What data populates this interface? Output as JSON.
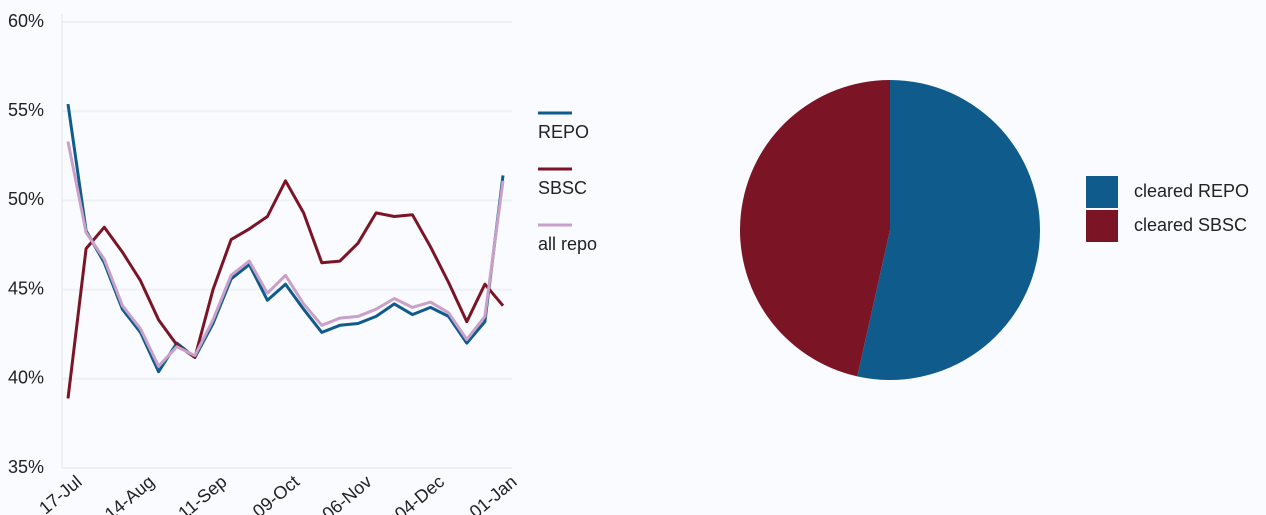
{
  "chart_data": [
    {
      "type": "line",
      "categories": [
        "17-Jul",
        null,
        null,
        null,
        "14-Aug",
        null,
        null,
        null,
        "11-Sep",
        null,
        null,
        null,
        "09-Oct",
        null,
        null,
        null,
        "06-Nov",
        null,
        null,
        null,
        "04-Dec",
        null,
        null,
        null,
        "01-Jan"
      ],
      "series": [
        {
          "name": "REPO",
          "color": "#0f5c8c",
          "values": [
            55.4,
            48.3,
            46.5,
            43.9,
            42.6,
            40.4,
            42.0,
            41.2,
            43.1,
            45.6,
            46.4,
            44.4,
            45.3,
            43.9,
            42.6,
            43.0,
            43.1,
            43.5,
            44.2,
            43.6,
            44.0,
            43.5,
            42.0,
            43.2,
            51.4
          ]
        },
        {
          "name": "SBSC",
          "color": "#7b1526",
          "values": [
            38.9,
            47.3,
            48.5,
            47.1,
            45.5,
            43.3,
            41.9,
            41.2,
            45.0,
            47.8,
            48.4,
            49.1,
            51.1,
            49.3,
            46.5,
            46.6,
            47.6,
            49.3,
            49.1,
            49.2,
            47.4,
            45.4,
            43.2,
            45.3,
            44.1
          ]
        },
        {
          "name": "all repo",
          "color": "#c9a0c8",
          "values": [
            53.3,
            48.2,
            46.7,
            44.1,
            42.8,
            40.7,
            41.8,
            41.3,
            43.3,
            45.8,
            46.6,
            44.8,
            45.8,
            44.2,
            43.0,
            43.4,
            43.5,
            43.9,
            44.5,
            44.0,
            44.3,
            43.7,
            42.2,
            43.5,
            51.1
          ]
        }
      ],
      "ylim": [
        35,
        60
      ],
      "yticks": [
        {
          "value": 35,
          "label": "35%"
        },
        {
          "value": 40,
          "label": "40%"
        },
        {
          "value": 45,
          "label": "45%"
        },
        {
          "value": 50,
          "label": "50%"
        },
        {
          "value": 55,
          "label": "55%"
        },
        {
          "value": 60,
          "label": "60%"
        }
      ],
      "grid": true,
      "legend": "right"
    },
    {
      "type": "pie",
      "categories": [
        "cleared REPO",
        "cleared SBSC"
      ],
      "values": [
        53.5,
        46.5
      ],
      "colors": [
        "#0f5c8c",
        "#7b1526"
      ],
      "legend": "right"
    }
  ]
}
